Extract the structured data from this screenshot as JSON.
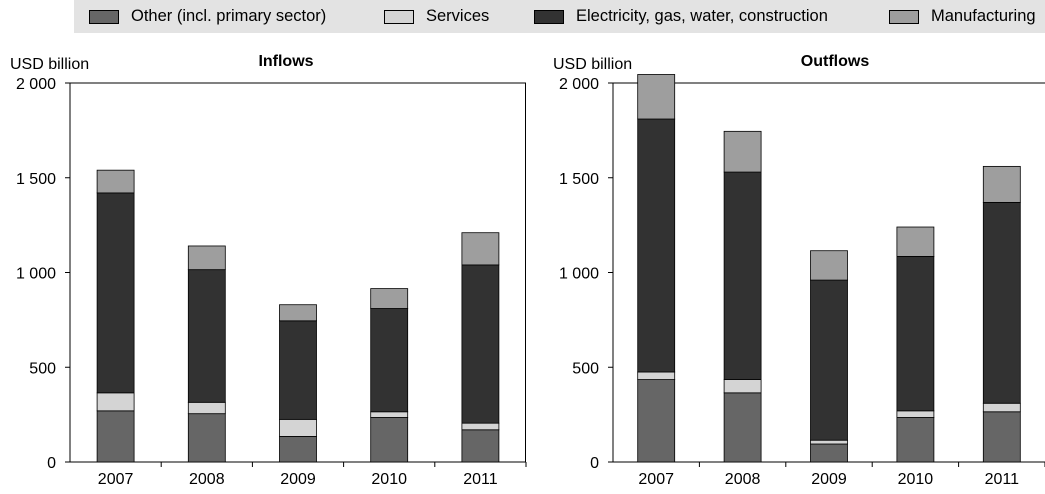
{
  "legend": [
    {
      "label": "Other (incl. primary sector)",
      "color": "#666666"
    },
    {
      "label": "Services",
      "color": "#d4d4d4"
    },
    {
      "label": "Electricity, gas, water, construction",
      "color": "#323232"
    },
    {
      "label": "Manufacturing",
      "color": "#9e9e9e"
    }
  ],
  "chart_data": [
    {
      "type": "bar",
      "stacked": true,
      "title": "Inflows",
      "ylabel": "USD billion",
      "categories": [
        "2007",
        "2008",
        "2009",
        "2010",
        "2011"
      ],
      "ylim": [
        0,
        2000
      ],
      "yticks": [
        0,
        500,
        1000,
        1500,
        2000
      ],
      "ytick_labels": [
        "0",
        "500",
        "1 000",
        "1 500",
        "2 000"
      ],
      "series": [
        {
          "name": "Other (incl. primary sector)",
          "color": "#666666",
          "values": [
            270,
            255,
            135,
            235,
            170
          ]
        },
        {
          "name": "Services",
          "color": "#d4d4d4",
          "values": [
            95,
            60,
            90,
            30,
            35
          ]
        },
        {
          "name": "Electricity, gas, water, construction",
          "color": "#323232",
          "values": [
            1055,
            700,
            520,
            545,
            835
          ]
        },
        {
          "name": "Manufacturing",
          "color": "#9e9e9e",
          "values": [
            120,
            125,
            85,
            105,
            170
          ]
        }
      ]
    },
    {
      "type": "bar",
      "stacked": true,
      "title": "Outflows",
      "ylabel": "USD billion",
      "categories": [
        "2007",
        "2008",
        "2009",
        "2010",
        "2011"
      ],
      "ylim": [
        0,
        2000
      ],
      "yticks": [
        0,
        500,
        1000,
        1500,
        2000
      ],
      "ytick_labels": [
        "0",
        "500",
        "1 000",
        "1 500",
        "2 000"
      ],
      "series": [
        {
          "name": "Other (incl. primary sector)",
          "color": "#666666",
          "values": [
            435,
            365,
            95,
            235,
            265
          ]
        },
        {
          "name": "Services",
          "color": "#d4d4d4",
          "values": [
            40,
            70,
            20,
            35,
            45
          ]
        },
        {
          "name": "Electricity, gas, water, construction",
          "color": "#323232",
          "values": [
            1335,
            1095,
            845,
            815,
            1060
          ]
        },
        {
          "name": "Manufacturing",
          "color": "#9e9e9e",
          "values": [
            235,
            215,
            155,
            155,
            190
          ]
        }
      ]
    }
  ]
}
